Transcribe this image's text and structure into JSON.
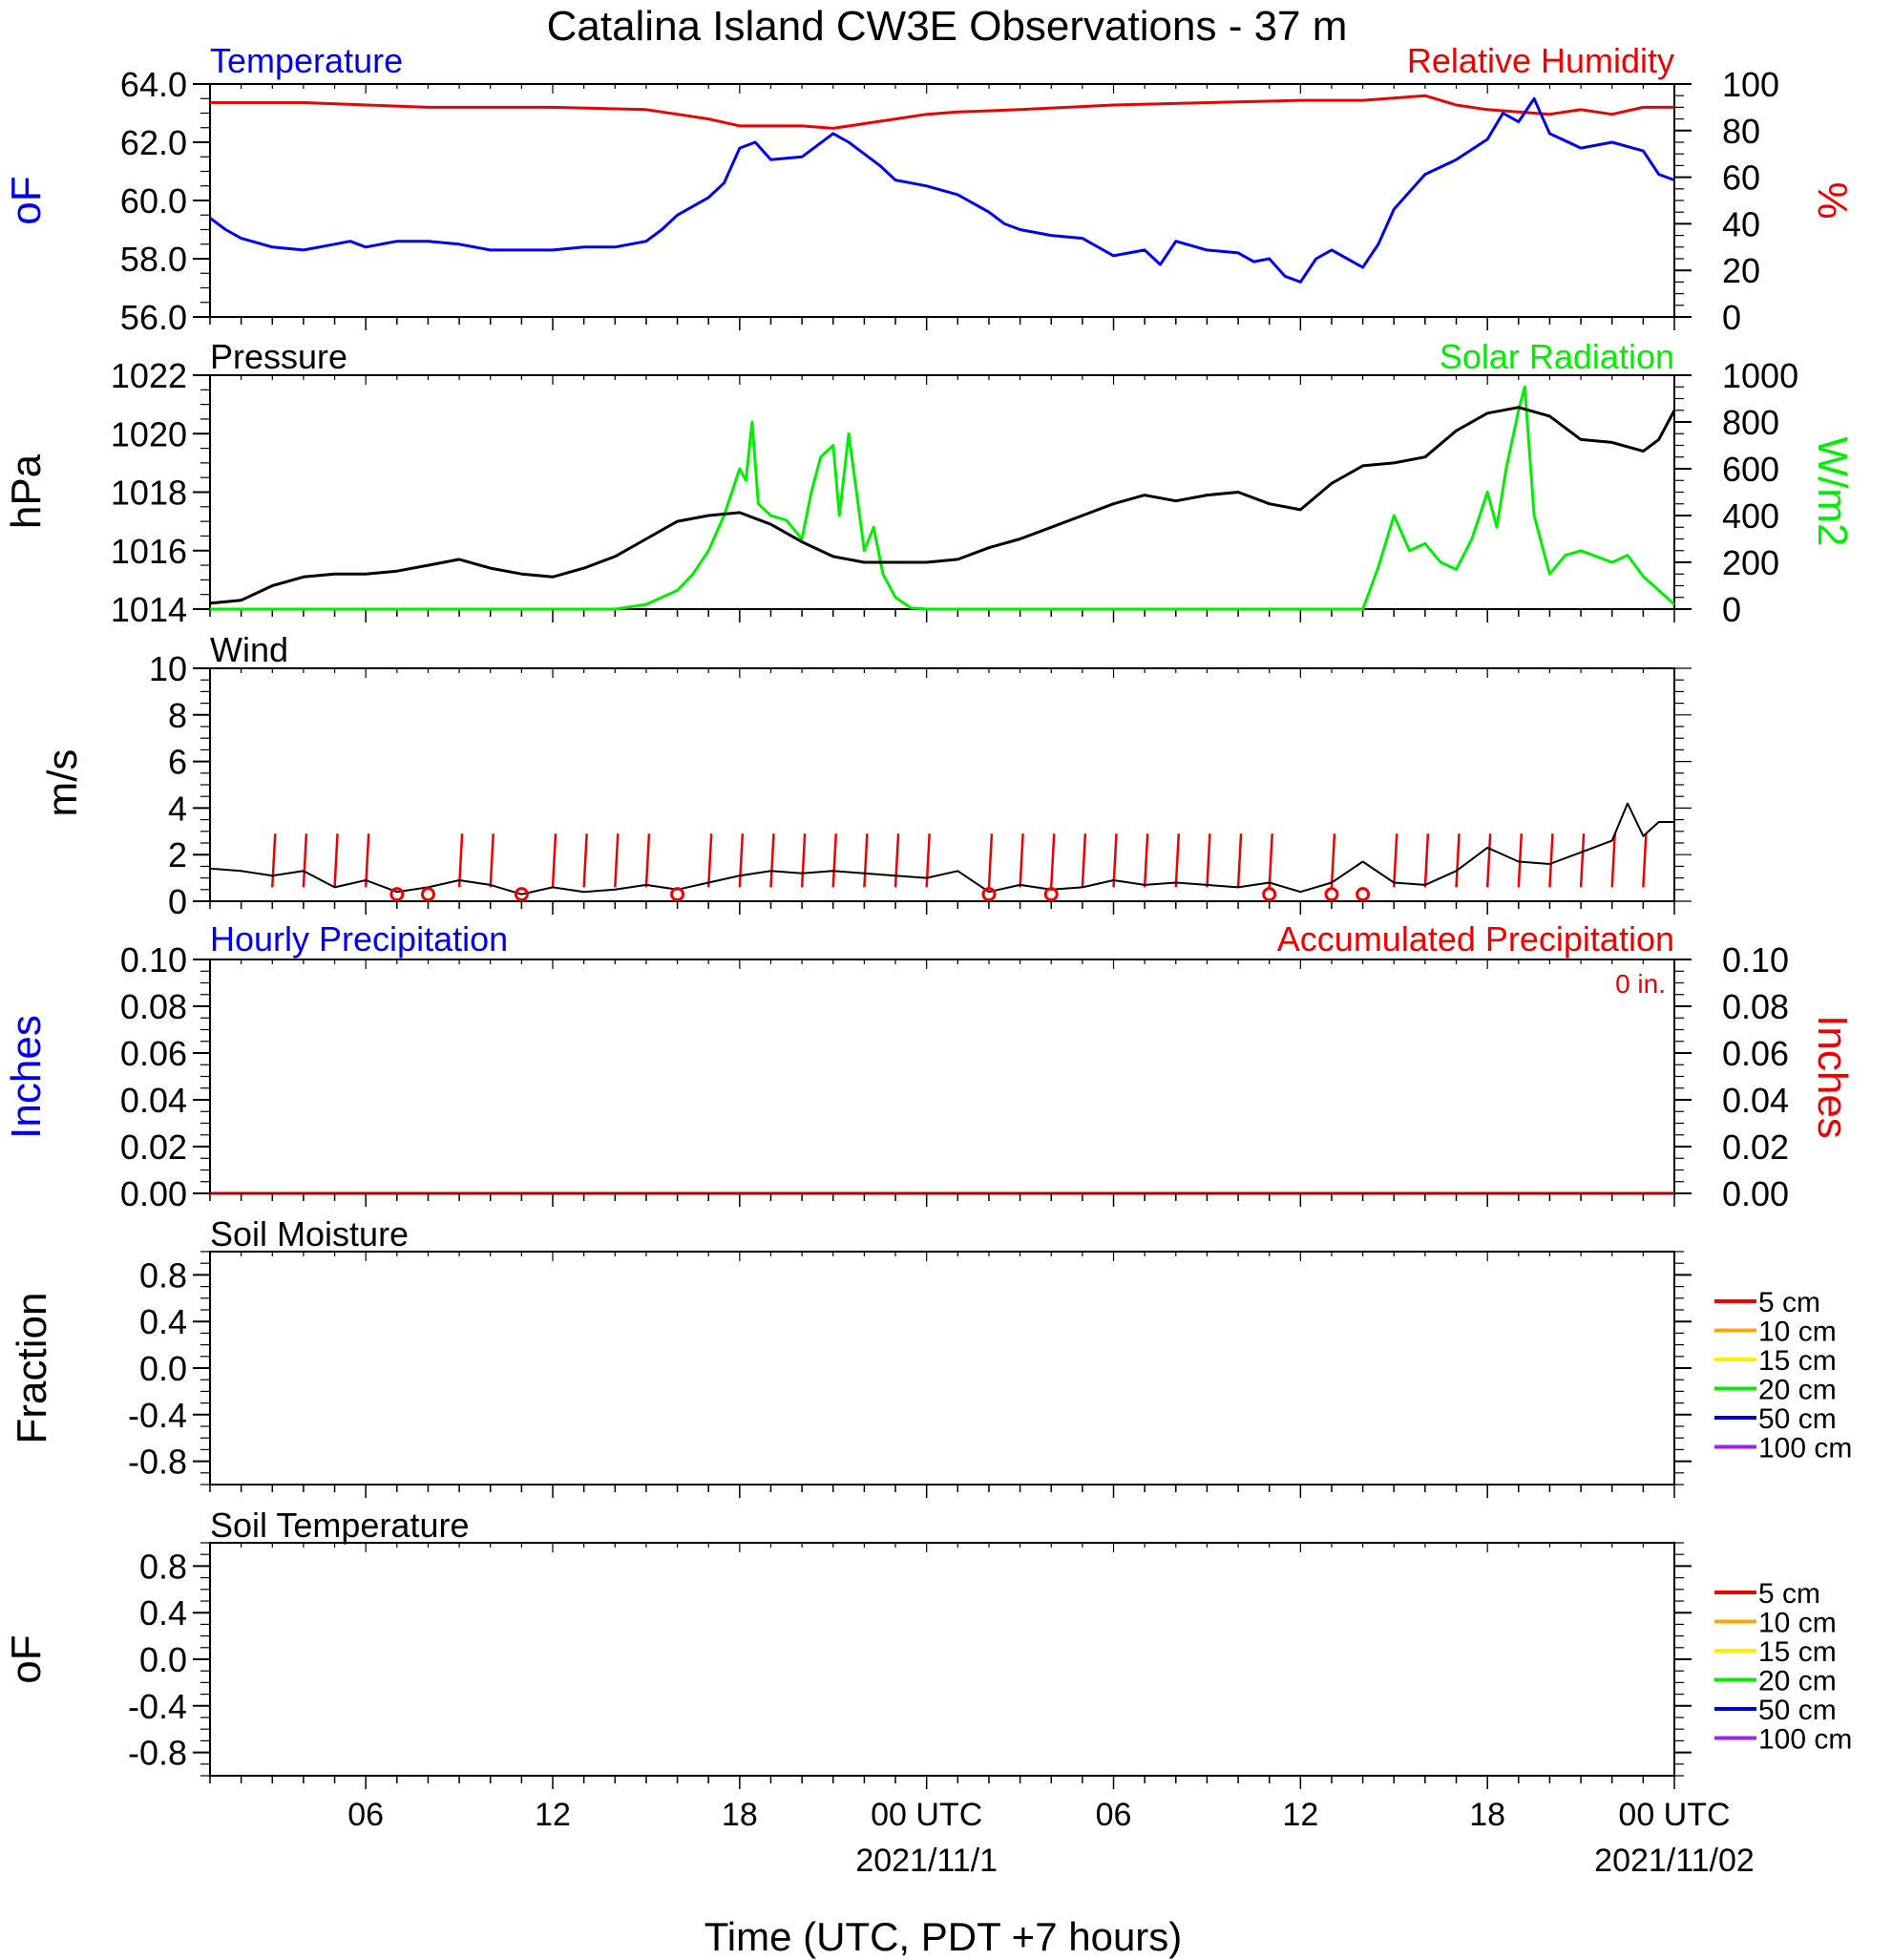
{
  "title": "Catalina Island CW3E Observations - 37 m",
  "xaxis": {
    "title": "Time (UTC, PDT +7 hours)",
    "tick_labels": [
      "06",
      "12",
      "18",
      "00 UTC",
      "06",
      "12",
      "18",
      "00 UTC"
    ],
    "tick_hours": [
      6,
      12,
      18,
      24,
      30,
      36,
      42,
      48
    ],
    "date_labels": [
      "2021/11/1",
      "2021/11/02"
    ],
    "date_hours": [
      24,
      48
    ],
    "range_hours": [
      1,
      48
    ]
  },
  "colors": {
    "temperature": "#0000ee",
    "humidity": "#ee0000",
    "pressure": "#000000",
    "solar": "#00ee00",
    "wind": "#000000",
    "barb": "#ee0000",
    "calm": "#ee0000",
    "precip": "#aa0000"
  },
  "panels": {
    "temp_rh": {
      "left_title": "Temperature",
      "right_title": "Relative Humidity",
      "left_unit": "oF",
      "right_unit": "%",
      "left_ticks": [
        "56.0",
        "58.0",
        "60.0",
        "62.0",
        "64.0"
      ],
      "right_ticks": [
        "0",
        "20",
        "40",
        "60",
        "80",
        "100"
      ]
    },
    "pressure_solar": {
      "left_title": "Pressure",
      "right_title": "Solar Radiation",
      "left_unit": "hPa",
      "right_unit": "W/m2",
      "left_ticks": [
        "1014",
        "1016",
        "1018",
        "1020",
        "1022"
      ],
      "right_ticks": [
        "0",
        "200",
        "400",
        "600",
        "800",
        "1000"
      ]
    },
    "wind": {
      "left_title": "Wind",
      "left_unit": "m/s",
      "left_ticks": [
        "0",
        "2",
        "4",
        "6",
        "8",
        "10"
      ]
    },
    "precip": {
      "left_title": "Hourly Precipitation",
      "right_title": "Accumulated Precipitation",
      "accum_label": "0 in.",
      "left_unit": "Inches",
      "right_unit": "Inches",
      "left_ticks": [
        "0.00",
        "0.02",
        "0.04",
        "0.06",
        "0.08",
        "0.10"
      ],
      "right_ticks": [
        "0.00",
        "0.02",
        "0.04",
        "0.06",
        "0.08",
        "0.10"
      ]
    },
    "soil_moisture": {
      "left_title": "Soil Moisture",
      "left_unit": "Fraction",
      "left_ticks": [
        "-0.8",
        "-0.4",
        "0.0",
        "0.4",
        "0.8"
      ],
      "legend": [
        {
          "label": "5 cm",
          "color": "#ee0000"
        },
        {
          "label": "10 cm",
          "color": "#ffa500"
        },
        {
          "label": "15 cm",
          "color": "#ffee00"
        },
        {
          "label": "20 cm",
          "color": "#00ee00"
        },
        {
          "label": "50 cm",
          "color": "#0000cc"
        },
        {
          "label": "100 cm",
          "color": "#a020f0"
        }
      ]
    },
    "soil_temp": {
      "left_title": "Soil Temperature",
      "left_unit": "oF",
      "left_ticks": [
        "-0.8",
        "-0.4",
        "0.0",
        "0.4",
        "0.8"
      ],
      "legend": [
        {
          "label": "5 cm",
          "color": "#ee0000"
        },
        {
          "label": "10 cm",
          "color": "#ffa500"
        },
        {
          "label": "15 cm",
          "color": "#ffee00"
        },
        {
          "label": "20 cm",
          "color": "#00ee00"
        },
        {
          "label": "50 cm",
          "color": "#0000cc"
        },
        {
          "label": "100 cm",
          "color": "#a020f0"
        }
      ]
    }
  },
  "chart_data": [
    {
      "type": "line",
      "panel": "temp_rh",
      "x_unit": "hours from 2021/10/31 00 UTC",
      "ylim": [
        56,
        64
      ],
      "y2lim": [
        0,
        100
      ],
      "series": [
        {
          "name": "Temperature",
          "axis": "left",
          "x": [
            1,
            1.5,
            2,
            3,
            4,
            5,
            5.5,
            6,
            7,
            8,
            9,
            10,
            11,
            12,
            13,
            14,
            15,
            15.5,
            16,
            17,
            17.5,
            18,
            18.5,
            19,
            20,
            21,
            21.5,
            22,
            22.5,
            23,
            23.5,
            24,
            25,
            26,
            26.5,
            27,
            28,
            29,
            30,
            31,
            31.5,
            32,
            33,
            34,
            34.5,
            35,
            35.5,
            36,
            36.5,
            37,
            38,
            38.5,
            39,
            40,
            41,
            42,
            42.5,
            43,
            43.5,
            44,
            45,
            46,
            47,
            47.5,
            48
          ],
          "y": [
            59.4,
            59.0,
            58.7,
            58.4,
            58.3,
            58.5,
            58.6,
            58.4,
            58.6,
            58.6,
            58.5,
            58.3,
            58.3,
            58.3,
            58.4,
            58.4,
            58.6,
            59.0,
            59.5,
            60.1,
            60.6,
            61.8,
            62.0,
            61.4,
            61.5,
            62.3,
            62.0,
            61.6,
            61.2,
            60.7,
            60.6,
            60.5,
            60.2,
            59.6,
            59.2,
            59.0,
            58.8,
            58.7,
            58.1,
            58.3,
            57.8,
            58.6,
            58.3,
            58.2,
            57.9,
            58.0,
            57.4,
            57.2,
            58.0,
            58.3,
            57.7,
            58.5,
            59.7,
            60.9,
            61.4,
            62.1,
            63.0,
            62.7,
            63.5,
            62.3,
            61.8,
            62.0,
            61.7,
            60.9,
            60.7
          ]
        },
        {
          "name": "Relative Humidity",
          "axis": "right",
          "x": [
            1,
            4,
            8,
            12,
            15,
            16,
            17,
            18,
            19,
            20,
            21,
            22,
            23,
            24,
            25,
            27,
            30,
            33,
            36,
            38,
            40,
            41,
            42,
            43,
            44,
            45,
            46,
            47,
            48
          ],
          "y": [
            92,
            92,
            90,
            90,
            89,
            87,
            85,
            82,
            82,
            82,
            81,
            83,
            85,
            87,
            88,
            89,
            91,
            92,
            93,
            93,
            95,
            91,
            89,
            88,
            87,
            89,
            87,
            90,
            90
          ]
        }
      ]
    },
    {
      "type": "line",
      "panel": "pressure_solar",
      "x_unit": "hours from 2021/10/31 00 UTC",
      "ylim": [
        1014,
        1022
      ],
      "y2lim": [
        0,
        1000
      ],
      "series": [
        {
          "name": "Pressure",
          "axis": "left",
          "x": [
            1,
            2,
            3,
            4,
            5,
            6,
            7,
            8,
            9,
            10,
            11,
            12,
            13,
            14,
            15,
            16,
            17,
            18,
            19,
            20,
            21,
            22,
            23,
            24,
            25,
            26,
            27,
            28,
            29,
            30,
            31,
            32,
            33,
            34,
            35,
            36,
            37,
            38,
            39,
            40,
            41,
            42,
            43,
            44,
            45,
            46,
            47,
            47.5,
            48
          ],
          "y": [
            1014.2,
            1014.3,
            1014.8,
            1015.1,
            1015.2,
            1015.2,
            1015.3,
            1015.5,
            1015.7,
            1015.4,
            1015.2,
            1015.1,
            1015.4,
            1015.8,
            1016.4,
            1017.0,
            1017.2,
            1017.3,
            1016.9,
            1016.3,
            1015.8,
            1015.6,
            1015.6,
            1015.6,
            1015.7,
            1016.1,
            1016.4,
            1016.8,
            1017.2,
            1017.6,
            1017.9,
            1017.7,
            1017.9,
            1018.0,
            1017.6,
            1017.4,
            1018.3,
            1018.9,
            1019.0,
            1019.2,
            1020.1,
            1020.7,
            1020.9,
            1020.6,
            1019.8,
            1019.7,
            1019.4,
            1019.8,
            1020.8
          ]
        },
        {
          "name": "Solar Radiation",
          "axis": "right",
          "x": [
            1,
            12,
            14,
            15,
            16,
            16.5,
            17,
            17.5,
            18,
            18.2,
            18.4,
            18.6,
            19,
            19.5,
            20,
            20.3,
            20.6,
            21,
            21.2,
            21.5,
            21.8,
            22,
            22.3,
            22.6,
            23,
            23.5,
            24,
            25,
            26,
            30,
            35,
            37,
            38,
            38.2,
            38.5,
            39,
            39.5,
            40,
            40.5,
            41,
            41.5,
            42,
            42.3,
            42.6,
            43,
            43.2,
            43.5,
            44,
            44.5,
            45,
            46,
            46.5,
            47,
            47.5,
            48
          ],
          "y": [
            0,
            0,
            0,
            20,
            80,
            150,
            250,
            400,
            600,
            550,
            800,
            450,
            400,
            380,
            300,
            500,
            650,
            700,
            400,
            750,
            450,
            250,
            350,
            150,
            50,
            5,
            0,
            0,
            0,
            0,
            0,
            0,
            0,
            70,
            180,
            400,
            250,
            280,
            200,
            170,
            300,
            500,
            350,
            600,
            850,
            950,
            400,
            150,
            230,
            250,
            200,
            230,
            140,
            80,
            20
          ]
        }
      ]
    },
    {
      "type": "line",
      "panel": "wind",
      "x_unit": "hours from 2021/10/31 00 UTC",
      "ylim": [
        0,
        10
      ],
      "series": [
        {
          "name": "Wind",
          "x": [
            1,
            2,
            3,
            4,
            5,
            6,
            7,
            8,
            9,
            10,
            11,
            12,
            13,
            14,
            15,
            16,
            17,
            18,
            19,
            20,
            21,
            22,
            23,
            24,
            25,
            26,
            27,
            28,
            29,
            30,
            31,
            32,
            33,
            34,
            35,
            36,
            37,
            38,
            39,
            40,
            41,
            42,
            43,
            44,
            45,
            46,
            46.5,
            47,
            47.5,
            48
          ],
          "y": [
            1.4,
            1.3,
            1.1,
            1.3,
            0.6,
            0.9,
            0.4,
            0.6,
            0.9,
            0.7,
            0.3,
            0.6,
            0.4,
            0.5,
            0.7,
            0.5,
            0.8,
            1.1,
            1.3,
            1.2,
            1.3,
            1.2,
            1.1,
            1.0,
            1.3,
            0.4,
            0.7,
            0.5,
            0.6,
            0.9,
            0.7,
            0.8,
            0.7,
            0.6,
            0.8,
            0.4,
            0.8,
            1.7,
            0.8,
            0.7,
            1.3,
            2.3,
            1.7,
            1.6,
            2.1,
            2.6,
            4.2,
            2.8,
            3.4,
            3.4
          ]
        }
      ],
      "barb_hours": [
        3,
        4,
        5,
        6,
        9,
        10,
        12,
        13,
        14,
        15,
        17,
        18,
        19,
        20,
        21,
        22,
        23,
        24,
        26,
        27,
        28,
        29,
        30,
        31,
        32,
        33,
        34,
        35,
        37,
        39,
        40,
        41,
        42,
        43,
        44,
        45,
        46,
        47
      ],
      "calm_hours": [
        7,
        8,
        11,
        16,
        26,
        28,
        35,
        37,
        38
      ]
    },
    {
      "type": "line",
      "panel": "precip",
      "x_unit": "hours from 2021/10/31 00 UTC",
      "ylim": [
        0,
        0.1
      ],
      "y2lim": [
        0,
        0.1
      ],
      "series": [
        {
          "name": "Hourly Precipitation",
          "x": [
            1,
            48
          ],
          "y": [
            0,
            0
          ]
        },
        {
          "name": "Accumulated Precipitation",
          "x": [
            1,
            48
          ],
          "y": [
            0,
            0
          ]
        }
      ]
    }
  ]
}
